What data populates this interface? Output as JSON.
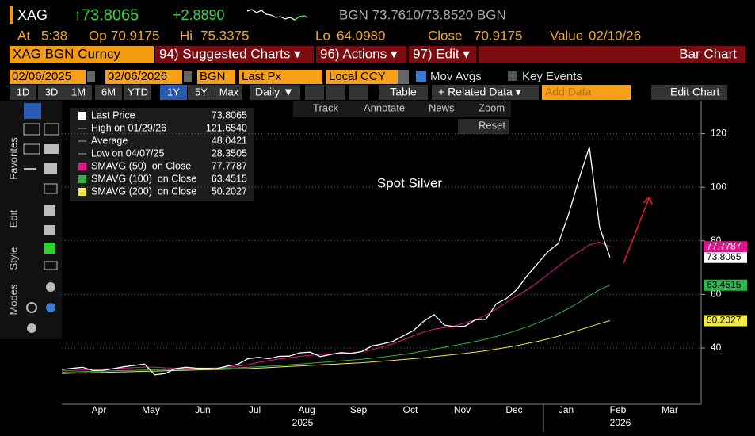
{
  "header": {
    "ticker": "XAG",
    "last": "↑73.8065",
    "change": "+2.8890",
    "quote_source": "BGN 73.7610/73.8520 BGN",
    "quote": [
      {
        "label": "At",
        "value": "5:38"
      },
      {
        "label": "Op",
        "value": "70.9175"
      },
      {
        "label": "Hi",
        "value": "75.3375"
      },
      {
        "label": "Lo",
        "value": "64.0980"
      },
      {
        "label": "Close",
        "value": "70.9175"
      },
      {
        "label": "Value",
        "value": "02/10/26"
      }
    ]
  },
  "menu": {
    "security": "XAG BGN Curncy",
    "items": [
      "94) Suggested Charts ▾",
      "96) Actions ▾",
      "97) Edit ▾"
    ],
    "chart_kind": "Bar Chart"
  },
  "fields": {
    "inputs": [
      "02/06/2025",
      "02/06/2026",
      "BGN",
      "Last Px",
      "Local CCY"
    ],
    "mov_avgs": "Mov Avgs",
    "key_events": "Key Events"
  },
  "controls": {
    "periods": [
      "1D",
      "3D",
      "1M",
      "6M",
      "YTD",
      "1Y",
      "5Y",
      "Max"
    ],
    "active_period": "1Y",
    "frequency": "Daily ▼",
    "table": "Table",
    "related": "+ Related Data ▾",
    "add_data": "Add Data",
    "edit_chart": "Edit Chart"
  },
  "side_tabs": [
    "Favorites",
    "Edit",
    "Style",
    "Modes"
  ],
  "chart_tools": [
    "Track",
    "Annotate",
    "News",
    "Zoom",
    "Reset"
  ],
  "chart_data": {
    "type": "line",
    "annotation": "Spot Silver",
    "month_labels": [
      "Apr",
      "May",
      "Jun",
      "Jul",
      "Aug",
      "Sep",
      "Oct",
      "Nov",
      "Dec",
      "Jan",
      "Feb",
      "Mar"
    ],
    "year_labels": [
      "2025",
      "2026"
    ],
    "ylim": [
      19,
      132
    ],
    "yticks": [
      40,
      60,
      80,
      100,
      120
    ],
    "grid": true,
    "series": [
      {
        "name": "Last Price",
        "color": "#ffffff",
        "values": [
          32.0,
          32.4,
          32.8,
          31.6,
          31.7,
          32.3,
          33.0,
          33.5,
          34.0,
          30.0,
          30.5,
          32.3,
          32.8,
          32.5,
          32.4,
          32.3,
          33.3,
          33.9,
          36.0,
          36.5,
          36.0,
          36.9,
          37.0,
          38.2,
          38.5,
          36.8,
          37.6,
          38.3,
          38.0,
          38.7,
          40.8,
          41.5,
          42.5,
          44.5,
          46.5,
          50.0,
          52.5,
          48.5,
          48.0,
          48.2,
          50.6,
          50.7,
          56.5,
          58.5,
          61.9,
          67.0,
          71.5,
          76.0,
          79.0,
          90.0,
          103.0,
          115.0,
          85.0,
          73.8065
        ]
      },
      {
        "name": "SMAVG (50)  on Close",
        "color": "#e0178c",
        "values": [
          31.5,
          31.6,
          31.8,
          32.0,
          32.2,
          32.3,
          32.5,
          32.7,
          32.9,
          32.8,
          32.6,
          32.5,
          32.4,
          32.4,
          32.5,
          32.6,
          32.8,
          33.2,
          33.8,
          34.6,
          35.3,
          35.9,
          36.4,
          36.9,
          37.3,
          37.6,
          37.8,
          38.0,
          38.2,
          38.6,
          39.4,
          40.4,
          41.6,
          43.0,
          44.6,
          46.0,
          47.0,
          47.6,
          48.3,
          49.4,
          50.6,
          52.3,
          54.5,
          57.0,
          59.5,
          61.8,
          64.5,
          67.5,
          70.5,
          73.5,
          76.0,
          78.5,
          79.5,
          77.7787
        ]
      },
      {
        "name": "SMAVG (100)  on Close",
        "color": "#2fb34a",
        "values": [
          31.0,
          31.1,
          31.2,
          31.3,
          31.4,
          31.5,
          31.6,
          31.7,
          31.8,
          31.9,
          32.0,
          32.0,
          32.1,
          32.2,
          32.3,
          32.4,
          32.5,
          32.6,
          32.8,
          33.0,
          33.2,
          33.4,
          33.7,
          34.0,
          34.3,
          34.6,
          34.9,
          35.2,
          35.5,
          35.8,
          36.2,
          36.6,
          37.1,
          37.6,
          38.2,
          38.9,
          39.6,
          40.3,
          41.0,
          41.7,
          42.5,
          43.3,
          44.3,
          45.4,
          46.6,
          47.9,
          49.4,
          51.0,
          52.8,
          54.8,
          57.0,
          59.5,
          61.8,
          63.4515
        ]
      },
      {
        "name": "SMAVG (200)  on Close",
        "color": "#f2e84a",
        "values": [
          30.5,
          30.6,
          30.7,
          30.8,
          30.9,
          31.0,
          31.1,
          31.2,
          31.3,
          31.4,
          31.5,
          31.6,
          31.7,
          31.8,
          31.9,
          32.0,
          32.1,
          32.2,
          32.3,
          32.5,
          32.7,
          32.9,
          33.1,
          33.3,
          33.5,
          33.7,
          33.9,
          34.1,
          34.3,
          34.5,
          34.8,
          35.1,
          35.4,
          35.7,
          36.0,
          36.4,
          36.8,
          37.2,
          37.6,
          38.0,
          38.5,
          39.0,
          39.6,
          40.2,
          40.9,
          41.7,
          42.5,
          43.4,
          44.4,
          45.5,
          46.7,
          47.9,
          49.1,
          50.2027
        ]
      }
    ],
    "stats": [
      {
        "name": "High on 01/29/26",
        "value": 121.654,
        "value_label": "121.6540"
      },
      {
        "name": "Average",
        "value": 48.0421,
        "value_label": "48.0421"
      },
      {
        "name": "Low on 04/07/25",
        "value": 28.3505,
        "value_label": "28.3505"
      }
    ]
  }
}
